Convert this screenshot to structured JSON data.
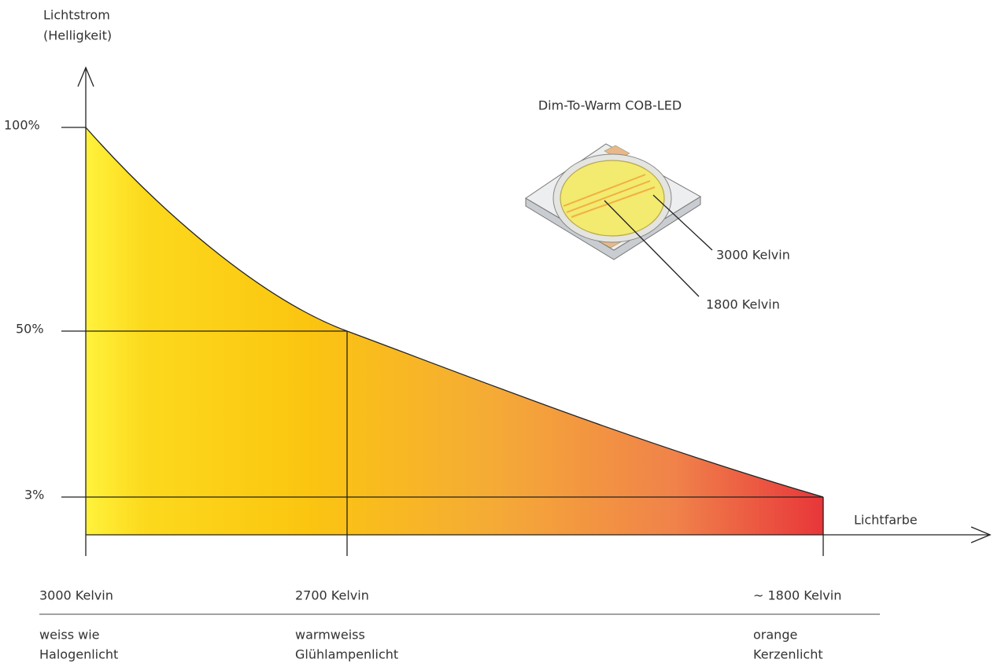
{
  "y_axis": {
    "title": [
      "Lichtstrom",
      "(Helligkeit)"
    ],
    "labels": [
      "100%",
      "50%",
      "3%"
    ]
  },
  "x_axis": {
    "title": "Lichtfarbe"
  },
  "led": {
    "title": "Dim-To-Warm COB-LED",
    "labels": [
      "3000 Kelvin",
      "1800 Kelvin"
    ]
  },
  "columns": [
    {
      "kelvin": "3000 Kelvin",
      "description": [
        "weiss wie",
        "Halogenlicht"
      ]
    },
    {
      "kelvin": "2700 Kelvin",
      "description": [
        "warmweiss",
        "Glühlampenlicht"
      ]
    },
    {
      "kelvin": "~ 1800 Kelvin",
      "description": [
        "orange",
        "Kerzenlicht"
      ]
    }
  ]
}
